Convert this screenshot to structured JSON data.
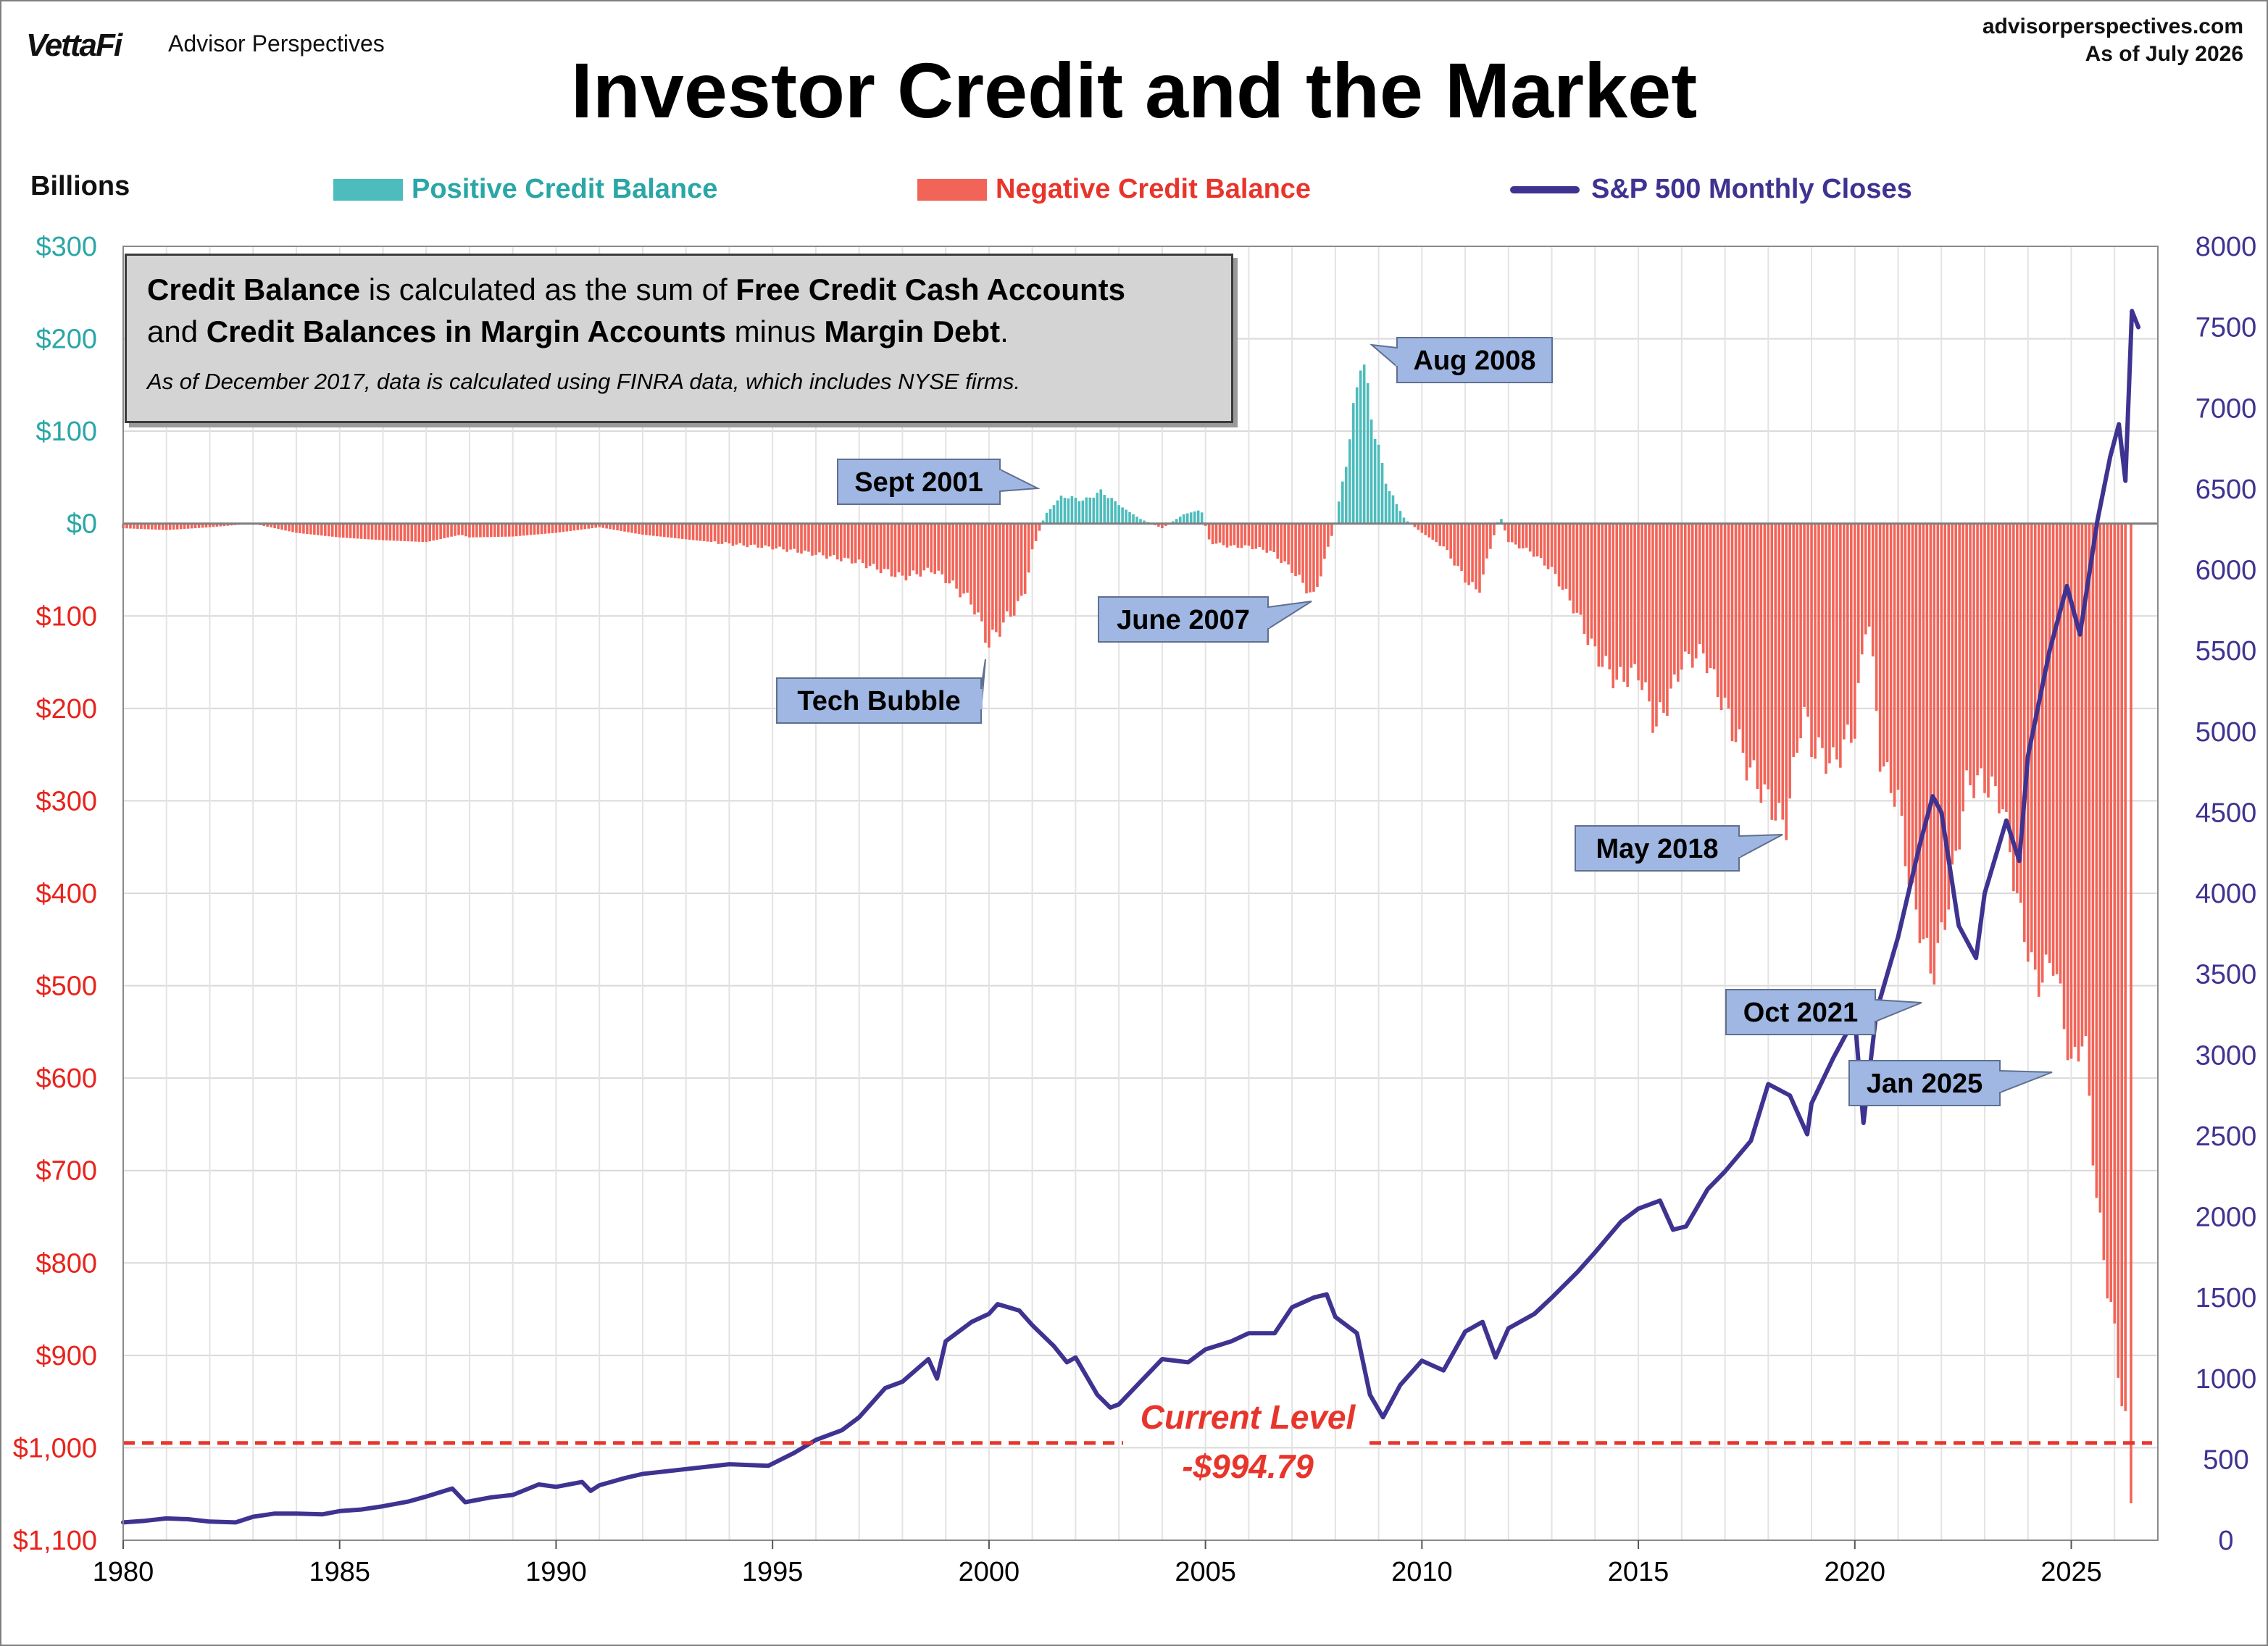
{
  "header": {
    "brand": "VettaFi",
    "brand_sub": "Advisor Perspectives",
    "site": "advisorperspectives.com",
    "as_of": "As of July 2026",
    "title": "Investor Credit and the Market",
    "units": "Billions"
  },
  "legend": {
    "positive": "Positive Credit Balance",
    "negative": "Negative Credit Balance",
    "sp500": "S&P 500 Monthly Closes"
  },
  "note": {
    "line1_b1": "Credit Balance",
    "line1_t1": " is calculated as the sum of ",
    "line1_b2": "Free Credit Cash Accounts",
    "line2_t0": "and ",
    "line2_b1": "Credit Balances in Margin Accounts",
    "line2_t1": " minus ",
    "line2_b2": "Margin Debt",
    "line2_t2": ".",
    "sub": "As of December 2017, data is calculated using FINRA data, which includes NYSE firms."
  },
  "colors": {
    "positive": "#4dbcbc",
    "negative": "#f26458",
    "sp500": "#3f3391",
    "left_axis_pos": "#2aa6a6",
    "left_axis_neg": "#e8231c",
    "right_axis": "#3f3391",
    "callout_fill": "#9fb7e2",
    "current_level": "#e8352b"
  },
  "chart_data": {
    "type": "bar",
    "x_range": [
      1980,
      2027
    ],
    "x_ticks": [
      "1980",
      "1985",
      "1990",
      "1995",
      "2000",
      "2005",
      "2010",
      "2015",
      "2020",
      "2025"
    ],
    "left_axis": {
      "unit": "Billions",
      "range": [
        -1100,
        300
      ],
      "ticks": [
        {
          "value": 300,
          "label": "$300"
        },
        {
          "value": 200,
          "label": "$200"
        },
        {
          "value": 100,
          "label": "$100"
        },
        {
          "value": 0,
          "label": "$0"
        },
        {
          "value": -100,
          "label": "$100"
        },
        {
          "value": -200,
          "label": "$200"
        },
        {
          "value": -300,
          "label": "$300"
        },
        {
          "value": -400,
          "label": "$400"
        },
        {
          "value": -500,
          "label": "$500"
        },
        {
          "value": -600,
          "label": "$600"
        },
        {
          "value": -700,
          "label": "$700"
        },
        {
          "value": -800,
          "label": "$800"
        },
        {
          "value": -900,
          "label": "$900"
        },
        {
          "value": -1000,
          "label": "$1,000"
        },
        {
          "value": -1100,
          "label": "$1,100"
        }
      ]
    },
    "right_axis": {
      "range": [
        0,
        8000
      ],
      "ticks": [
        "0",
        "500",
        "1000",
        "1500",
        "2000",
        "2500",
        "3000",
        "3500",
        "4000",
        "4500",
        "5000",
        "5500",
        "6000",
        "6500",
        "7000",
        "7500",
        "8000"
      ]
    },
    "grid": true,
    "series": [
      {
        "name": "Positive Credit Balance / Negative Credit Balance",
        "kind": "bar",
        "points": [
          [
            1980,
            -5
          ],
          [
            1981,
            -7
          ],
          [
            1982,
            -4
          ],
          [
            1983,
            0
          ],
          [
            1984,
            -10
          ],
          [
            1985,
            -15
          ],
          [
            1986,
            -18
          ],
          [
            1987,
            -20
          ],
          [
            1987.8,
            -12
          ],
          [
            1988,
            -15
          ],
          [
            1989,
            -14
          ],
          [
            1990,
            -10
          ],
          [
            1991,
            -4
          ],
          [
            1992,
            -12
          ],
          [
            1993,
            -17
          ],
          [
            1994,
            -22
          ],
          [
            1995,
            -26
          ],
          [
            1996,
            -33
          ],
          [
            1997,
            -42
          ],
          [
            1998,
            -58
          ],
          [
            1998.7,
            -50
          ],
          [
            1999,
            -60
          ],
          [
            1999.6,
            -85
          ],
          [
            2000.0,
            -130
          ],
          [
            2000.3,
            -110
          ],
          [
            2000.8,
            -80
          ],
          [
            2001.0,
            -30
          ],
          [
            2001.3,
            10
          ],
          [
            2001.7,
            30
          ],
          [
            2002.2,
            25
          ],
          [
            2002.6,
            35
          ],
          [
            2003.0,
            20
          ],
          [
            2003.5,
            5
          ],
          [
            2004.0,
            -5
          ],
          [
            2004.5,
            10
          ],
          [
            2004.9,
            15
          ],
          [
            2005.1,
            -20
          ],
          [
            2005.6,
            -25
          ],
          [
            2006.0,
            -25
          ],
          [
            2006.5,
            -30
          ],
          [
            2007.0,
            -50
          ],
          [
            2007.5,
            -80
          ],
          [
            2008.0,
            0
          ],
          [
            2008.3,
            80
          ],
          [
            2008.6,
            185
          ],
          [
            2008.9,
            100
          ],
          [
            2009.2,
            40
          ],
          [
            2009.6,
            5
          ],
          [
            2010.0,
            -10
          ],
          [
            2010.5,
            -25
          ],
          [
            2011.0,
            -60
          ],
          [
            2011.3,
            -75
          ],
          [
            2011.8,
            10
          ],
          [
            2012.0,
            -20
          ],
          [
            2012.5,
            -30
          ],
          [
            2013.0,
            -50
          ],
          [
            2013.5,
            -90
          ],
          [
            2014.0,
            -140
          ],
          [
            2014.5,
            -170
          ],
          [
            2015.0,
            -160
          ],
          [
            2015.4,
            -220
          ],
          [
            2015.8,
            -180
          ],
          [
            2016.0,
            -150
          ],
          [
            2016.5,
            -140
          ],
          [
            2017.0,
            -200
          ],
          [
            2017.5,
            -260
          ],
          [
            2018.0,
            -300
          ],
          [
            2018.4,
            -330
          ],
          [
            2018.8,
            -200
          ],
          [
            2019.0,
            -240
          ],
          [
            2019.5,
            -260
          ],
          [
            2020.0,
            -220
          ],
          [
            2020.3,
            -90
          ],
          [
            2020.6,
            -260
          ],
          [
            2021.0,
            -300
          ],
          [
            2021.3,
            -400
          ],
          [
            2021.8,
            -490
          ],
          [
            2022.2,
            -400
          ],
          [
            2022.6,
            -280
          ],
          [
            2023.0,
            -280
          ],
          [
            2023.4,
            -300
          ],
          [
            2023.8,
            -420
          ],
          [
            2024.2,
            -500
          ],
          [
            2024.6,
            -470
          ],
          [
            2025.0,
            -590
          ],
          [
            2025.3,
            -550
          ],
          [
            2025.6,
            -740
          ],
          [
            2026.0,
            -880
          ],
          [
            2026.3,
            -994.79
          ]
        ]
      },
      {
        "name": "S&P 500 Monthly Closes",
        "kind": "line",
        "points": [
          [
            1980.0,
            110
          ],
          [
            1980.5,
            120
          ],
          [
            1981.0,
            135
          ],
          [
            1981.5,
            130
          ],
          [
            1982.0,
            115
          ],
          [
            1982.6,
            110
          ],
          [
            1983.0,
            145
          ],
          [
            1983.5,
            165
          ],
          [
            1984.0,
            165
          ],
          [
            1984.6,
            160
          ],
          [
            1985.0,
            180
          ],
          [
            1985.5,
            190
          ],
          [
            1986.0,
            210
          ],
          [
            1986.6,
            240
          ],
          [
            1987.0,
            270
          ],
          [
            1987.6,
            320
          ],
          [
            1987.9,
            235
          ],
          [
            1988.5,
            265
          ],
          [
            1989.0,
            280
          ],
          [
            1989.6,
            345
          ],
          [
            1990.0,
            330
          ],
          [
            1990.6,
            360
          ],
          [
            1990.8,
            305
          ],
          [
            1991.0,
            340
          ],
          [
            1991.6,
            385
          ],
          [
            1992.0,
            410
          ],
          [
            1993.0,
            440
          ],
          [
            1994.0,
            470
          ],
          [
            1994.9,
            460
          ],
          [
            1995.5,
            540
          ],
          [
            1996.0,
            620
          ],
          [
            1996.6,
            680
          ],
          [
            1997.0,
            760
          ],
          [
            1997.6,
            940
          ],
          [
            1998.0,
            980
          ],
          [
            1998.6,
            1120
          ],
          [
            1998.8,
            1000
          ],
          [
            1999.0,
            1230
          ],
          [
            1999.6,
            1350
          ],
          [
            2000.0,
            1400
          ],
          [
            2000.2,
            1460
          ],
          [
            2000.7,
            1420
          ],
          [
            2001.0,
            1330
          ],
          [
            2001.5,
            1200
          ],
          [
            2001.8,
            1100
          ],
          [
            2002.0,
            1130
          ],
          [
            2002.5,
            900
          ],
          [
            2002.8,
            820
          ],
          [
            2003.0,
            840
          ],
          [
            2003.5,
            980
          ],
          [
            2004.0,
            1120
          ],
          [
            2004.6,
            1100
          ],
          [
            2005.0,
            1180
          ],
          [
            2005.6,
            1230
          ],
          [
            2006.0,
            1280
          ],
          [
            2006.6,
            1280
          ],
          [
            2007.0,
            1440
          ],
          [
            2007.5,
            1500
          ],
          [
            2007.8,
            1520
          ],
          [
            2008.0,
            1380
          ],
          [
            2008.5,
            1280
          ],
          [
            2008.8,
            900
          ],
          [
            2009.1,
            760
          ],
          [
            2009.5,
            960
          ],
          [
            2010.0,
            1110
          ],
          [
            2010.5,
            1050
          ],
          [
            2011.0,
            1290
          ],
          [
            2011.4,
            1350
          ],
          [
            2011.7,
            1130
          ],
          [
            2012.0,
            1310
          ],
          [
            2012.6,
            1400
          ],
          [
            2013.0,
            1500
          ],
          [
            2013.6,
            1660
          ],
          [
            2014.0,
            1780
          ],
          [
            2014.6,
            1970
          ],
          [
            2015.0,
            2050
          ],
          [
            2015.5,
            2100
          ],
          [
            2015.8,
            1920
          ],
          [
            2016.1,
            1940
          ],
          [
            2016.6,
            2170
          ],
          [
            2017.0,
            2280
          ],
          [
            2017.6,
            2470
          ],
          [
            2018.0,
            2820
          ],
          [
            2018.5,
            2750
          ],
          [
            2018.9,
            2510
          ],
          [
            2019.0,
            2700
          ],
          [
            2019.5,
            2980
          ],
          [
            2020.0,
            3230
          ],
          [
            2020.2,
            2580
          ],
          [
            2020.5,
            3270
          ],
          [
            2021.0,
            3730
          ],
          [
            2021.5,
            4300
          ],
          [
            2021.8,
            4600
          ],
          [
            2022.0,
            4500
          ],
          [
            2022.4,
            3800
          ],
          [
            2022.8,
            3600
          ],
          [
            2023.0,
            4000
          ],
          [
            2023.5,
            4450
          ],
          [
            2023.8,
            4200
          ],
          [
            2024.0,
            4850
          ],
          [
            2024.5,
            5500
          ],
          [
            2024.9,
            5900
          ],
          [
            2025.2,
            5600
          ],
          [
            2025.6,
            6300
          ],
          [
            2025.9,
            6700
          ],
          [
            2026.1,
            6900
          ],
          [
            2026.25,
            6550
          ],
          [
            2026.4,
            7600
          ],
          [
            2026.55,
            7500
          ]
        ]
      }
    ],
    "annotations": [
      {
        "text": "Aug 2008",
        "date": 2008.6
      },
      {
        "text": "Sept 2001",
        "date": 2001.7
      },
      {
        "text": "June 2007",
        "date": 2007.5
      },
      {
        "text": "Tech Bubble",
        "date": 2000.0
      },
      {
        "text": "May 2018",
        "date": 2018.4
      },
      {
        "text": "Oct 2021",
        "date": 2021.8
      },
      {
        "text": "Jan 2025",
        "date": 2025.0
      }
    ],
    "current_level": {
      "label": "Current Level",
      "value_label": "-$994.79",
      "value": -994.79
    }
  }
}
